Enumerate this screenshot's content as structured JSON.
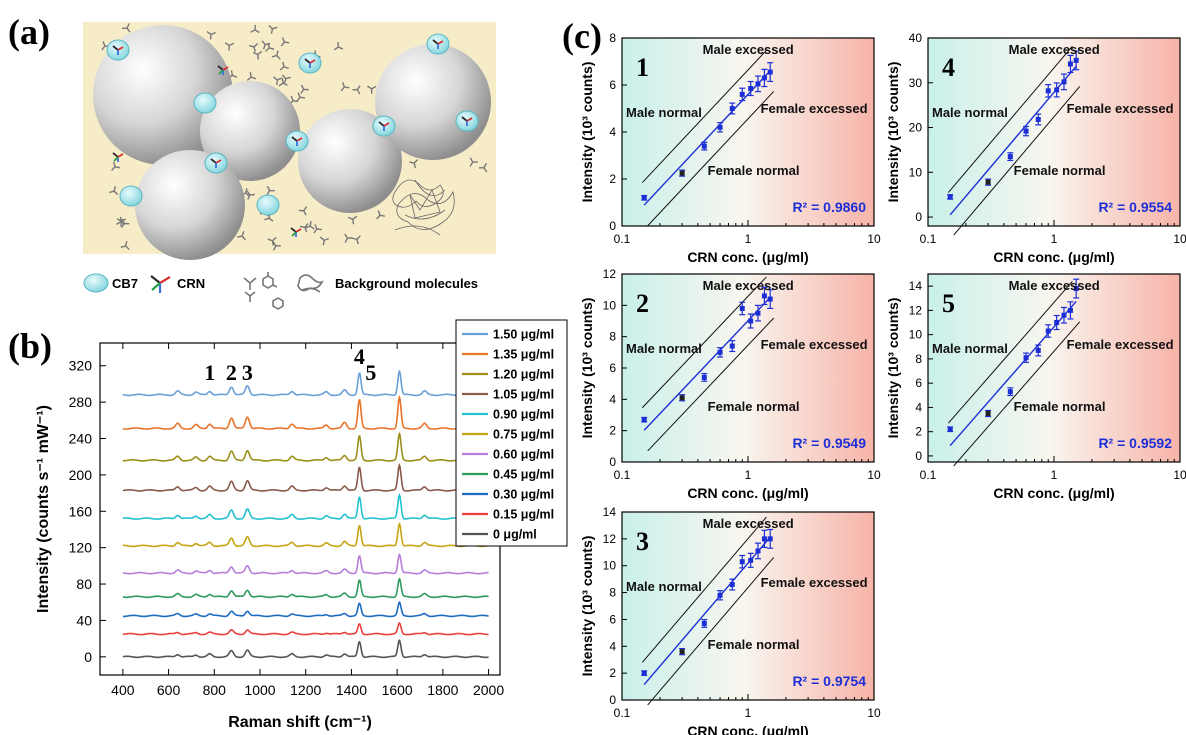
{
  "panel_labels": {
    "a": "(a)",
    "b": "(b)",
    "c": "(c)"
  },
  "schematic": {
    "legend": {
      "cb7": "CB7",
      "crn": "CRN",
      "background": "Background molecules"
    },
    "colors": {
      "background_fill": "#f7ecc8",
      "cb7": "#a6e3e8",
      "sphere": "#cfcfcf"
    }
  },
  "chart_data": [
    {
      "panel": "b",
      "type": "line",
      "xlabel": "Raman shift (cm⁻¹)",
      "ylabel": "Intensity (counts s⁻¹ mW⁻¹)",
      "xlim": [
        300,
        2050
      ],
      "ylim": [
        -20,
        345
      ],
      "xticks": [
        400,
        600,
        800,
        1000,
        1200,
        1400,
        1600,
        1800,
        2000
      ],
      "yticks": [
        0,
        40,
        80,
        120,
        160,
        200,
        240,
        280,
        320
      ],
      "peak_labels": [
        {
          "text": "1",
          "x": 780
        },
        {
          "text": "2",
          "x": 875
        },
        {
          "text": "3",
          "x": 945
        },
        {
          "text": "4",
          "x": 1435
        },
        {
          "text": "5",
          "x": 1485
        }
      ],
      "peaks": [
        {
          "x": 640,
          "h": 4
        },
        {
          "x": 720,
          "h": 3
        },
        {
          "x": 780,
          "h": 4
        },
        {
          "x": 875,
          "h": 9
        },
        {
          "x": 945,
          "h": 10
        },
        {
          "x": 1140,
          "h": 4
        },
        {
          "x": 1290,
          "h": 3
        },
        {
          "x": 1370,
          "h": 5
        },
        {
          "x": 1435,
          "h": 24
        },
        {
          "x": 1610,
          "h": 26
        },
        {
          "x": 1720,
          "h": 4
        }
      ],
      "series": [
        {
          "name": "1.50 μg/ml",
          "offset": 288,
          "scale": 1.0,
          "color": "#6aa0d8"
        },
        {
          "name": "1.35 μg/ml",
          "offset": 251,
          "scale": 1.3,
          "color": "#e8742a"
        },
        {
          "name": "1.20 μg/ml",
          "offset": 216,
          "scale": 1.1,
          "color": "#9b8f1a"
        },
        {
          "name": "1.05 μg/ml",
          "offset": 183,
          "scale": 1.05,
          "color": "#8a5a4a"
        },
        {
          "name": "0.90 μg/ml",
          "offset": 152,
          "scale": 1.0,
          "color": "#22c1cf"
        },
        {
          "name": "0.75 μg/ml",
          "offset": 122,
          "scale": 0.95,
          "color": "#c6a515"
        },
        {
          "name": "0.60 μg/ml",
          "offset": 92,
          "scale": 0.8,
          "color": "#b67ed9"
        },
        {
          "name": "0.45 μg/ml",
          "offset": 66,
          "scale": 0.75,
          "color": "#2e9a5c"
        },
        {
          "name": "0.30 μg/ml",
          "offset": 45,
          "scale": 0.55,
          "color": "#1f6cc4"
        },
        {
          "name": "0.15 μg/ml",
          "offset": 25,
          "scale": 0.45,
          "color": "#e8413d"
        },
        {
          "name": "0 μg/ml",
          "offset": 0,
          "scale": 0.7,
          "color": "#555555"
        }
      ]
    },
    {
      "panel": "c",
      "type": "scatter",
      "subplots": [
        {
          "id": "1",
          "r2": "R² = 0.9860",
          "ylim": [
            0,
            8
          ],
          "yticks": [
            0,
            2,
            4,
            6,
            8
          ],
          "x": [
            0.15,
            0.3,
            0.45,
            0.6,
            0.75,
            0.9,
            1.05,
            1.2,
            1.35,
            1.5
          ],
          "y": [
            1.2,
            2.25,
            3.4,
            4.2,
            5.0,
            5.6,
            5.85,
            6.05,
            6.3,
            6.55
          ]
        },
        {
          "id": "4",
          "r2": "R² = 0.9554",
          "ylim": [
            -2,
            40
          ],
          "yticks": [
            0,
            10,
            20,
            30,
            40
          ],
          "x": [
            0.15,
            0.3,
            0.45,
            0.6,
            0.75,
            0.9,
            1.05,
            1.2,
            1.35,
            1.5
          ],
          "y": [
            4.5,
            7.8,
            13.5,
            19.2,
            21.8,
            28.2,
            28.4,
            30.2,
            34.2,
            35.0
          ]
        },
        {
          "id": "2",
          "r2": "R² = 0.9549",
          "ylim": [
            0,
            12
          ],
          "yticks": [
            0,
            2,
            4,
            6,
            8,
            10,
            12
          ],
          "x": [
            0.15,
            0.3,
            0.45,
            0.6,
            0.75,
            0.9,
            1.05,
            1.2,
            1.35,
            1.5
          ],
          "y": [
            2.7,
            4.1,
            5.4,
            7.0,
            7.4,
            9.8,
            9.0,
            9.5,
            10.6,
            10.4
          ]
        },
        {
          "id": "5",
          "r2": "R² = 0.9592",
          "ylim": [
            -0.5,
            15
          ],
          "yticks": [
            0,
            2,
            4,
            6,
            8,
            10,
            12,
            14
          ],
          "x": [
            0.15,
            0.3,
            0.45,
            0.6,
            0.75,
            0.9,
            1.05,
            1.2,
            1.35,
            1.5
          ],
          "y": [
            2.2,
            3.5,
            5.3,
            8.1,
            8.7,
            10.3,
            11.0,
            11.6,
            12.0,
            13.8
          ]
        },
        {
          "id": "3",
          "r2": "R² = 0.9754",
          "ylim": [
            0,
            14
          ],
          "yticks": [
            0,
            2,
            4,
            6,
            8,
            10,
            12,
            14
          ],
          "x": [
            0.15,
            0.3,
            0.45,
            0.6,
            0.75,
            0.9,
            1.05,
            1.2,
            1.35,
            1.5
          ],
          "y": [
            2.0,
            3.6,
            5.7,
            7.8,
            8.6,
            10.3,
            10.4,
            11.1,
            12.0,
            12.0
          ]
        }
      ],
      "xlabel": "CRN conc. (μg/ml)",
      "ylabel": "Intensity (10³ counts)",
      "x_scale": "log",
      "xlim": [
        0.1,
        10
      ],
      "xticks": [
        "0.1",
        "1",
        "10"
      ],
      "annotations": {
        "male_excessed": "Male excessed",
        "male_normal": "Male normal",
        "female_excessed": "Female excessed",
        "female_normal": "Female normal"
      },
      "colors": {
        "fit_line": "#1c2fd6",
        "points": "#1c2fd6",
        "bg_left": "#c9f0ea",
        "bg_right": "#f7b3a8"
      }
    }
  ]
}
